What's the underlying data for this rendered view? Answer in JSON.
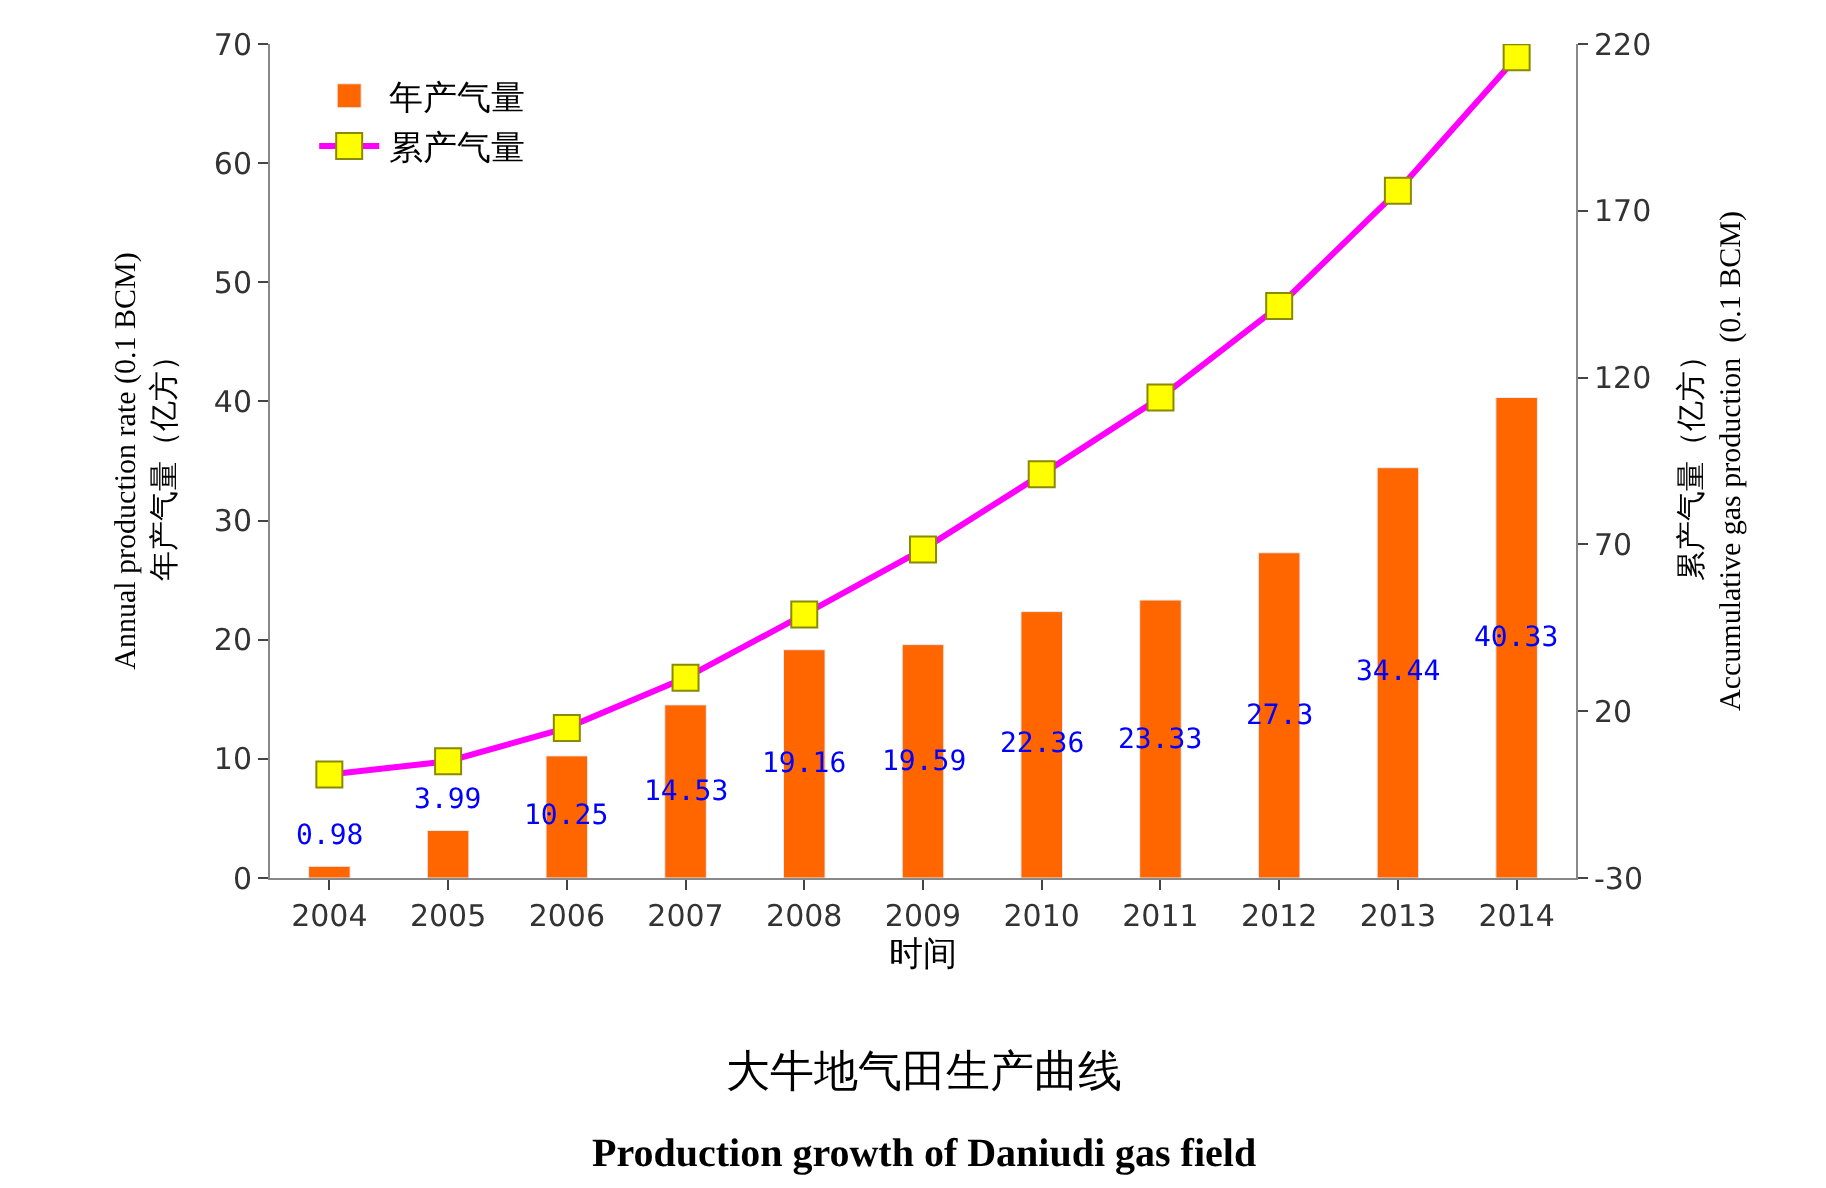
{
  "chart_data": {
    "type": "bar",
    "title": "大牛地气田生产曲线",
    "subtitle": "Production growth of Daniudi gas field",
    "xlabel": "时间",
    "ylabel": "Annual production rate (0.1 BCM)\n年产气量（亿方）",
    "y2label": "累产气量（亿方）\nAccumulative gas production  (0.1 BCM)",
    "categories": [
      "2004",
      "2005",
      "2006",
      "2007",
      "2008",
      "2009",
      "2010",
      "2011",
      "2012",
      "2013",
      "2014"
    ],
    "series": [
      {
        "name": "年产气量",
        "color": "#ff6600",
        "values": [
          0.98,
          3.99,
          10.25,
          14.53,
          19.16,
          19.59,
          22.36,
          23.33,
          27.3,
          34.44,
          40.33
        ],
        "data_labels": true
      },
      {
        "name": "累产气量",
        "type": "line",
        "axis": "y2",
        "color": "#ff00ff",
        "marker": "square",
        "line_style": "solid",
        "values": [
          1,
          5,
          15,
          30,
          49,
          68.5,
          91,
          114,
          141.5,
          176,
          216
        ]
      }
    ],
    "ylim": [
      0,
      70
    ],
    "yticks": [
      0,
      10,
      20,
      30,
      40,
      50,
      60,
      70
    ],
    "y2lim": [
      -30,
      220
    ],
    "y2ticks": [
      -30,
      20,
      70,
      120,
      170,
      220
    ],
    "legend": "top left"
  }
}
